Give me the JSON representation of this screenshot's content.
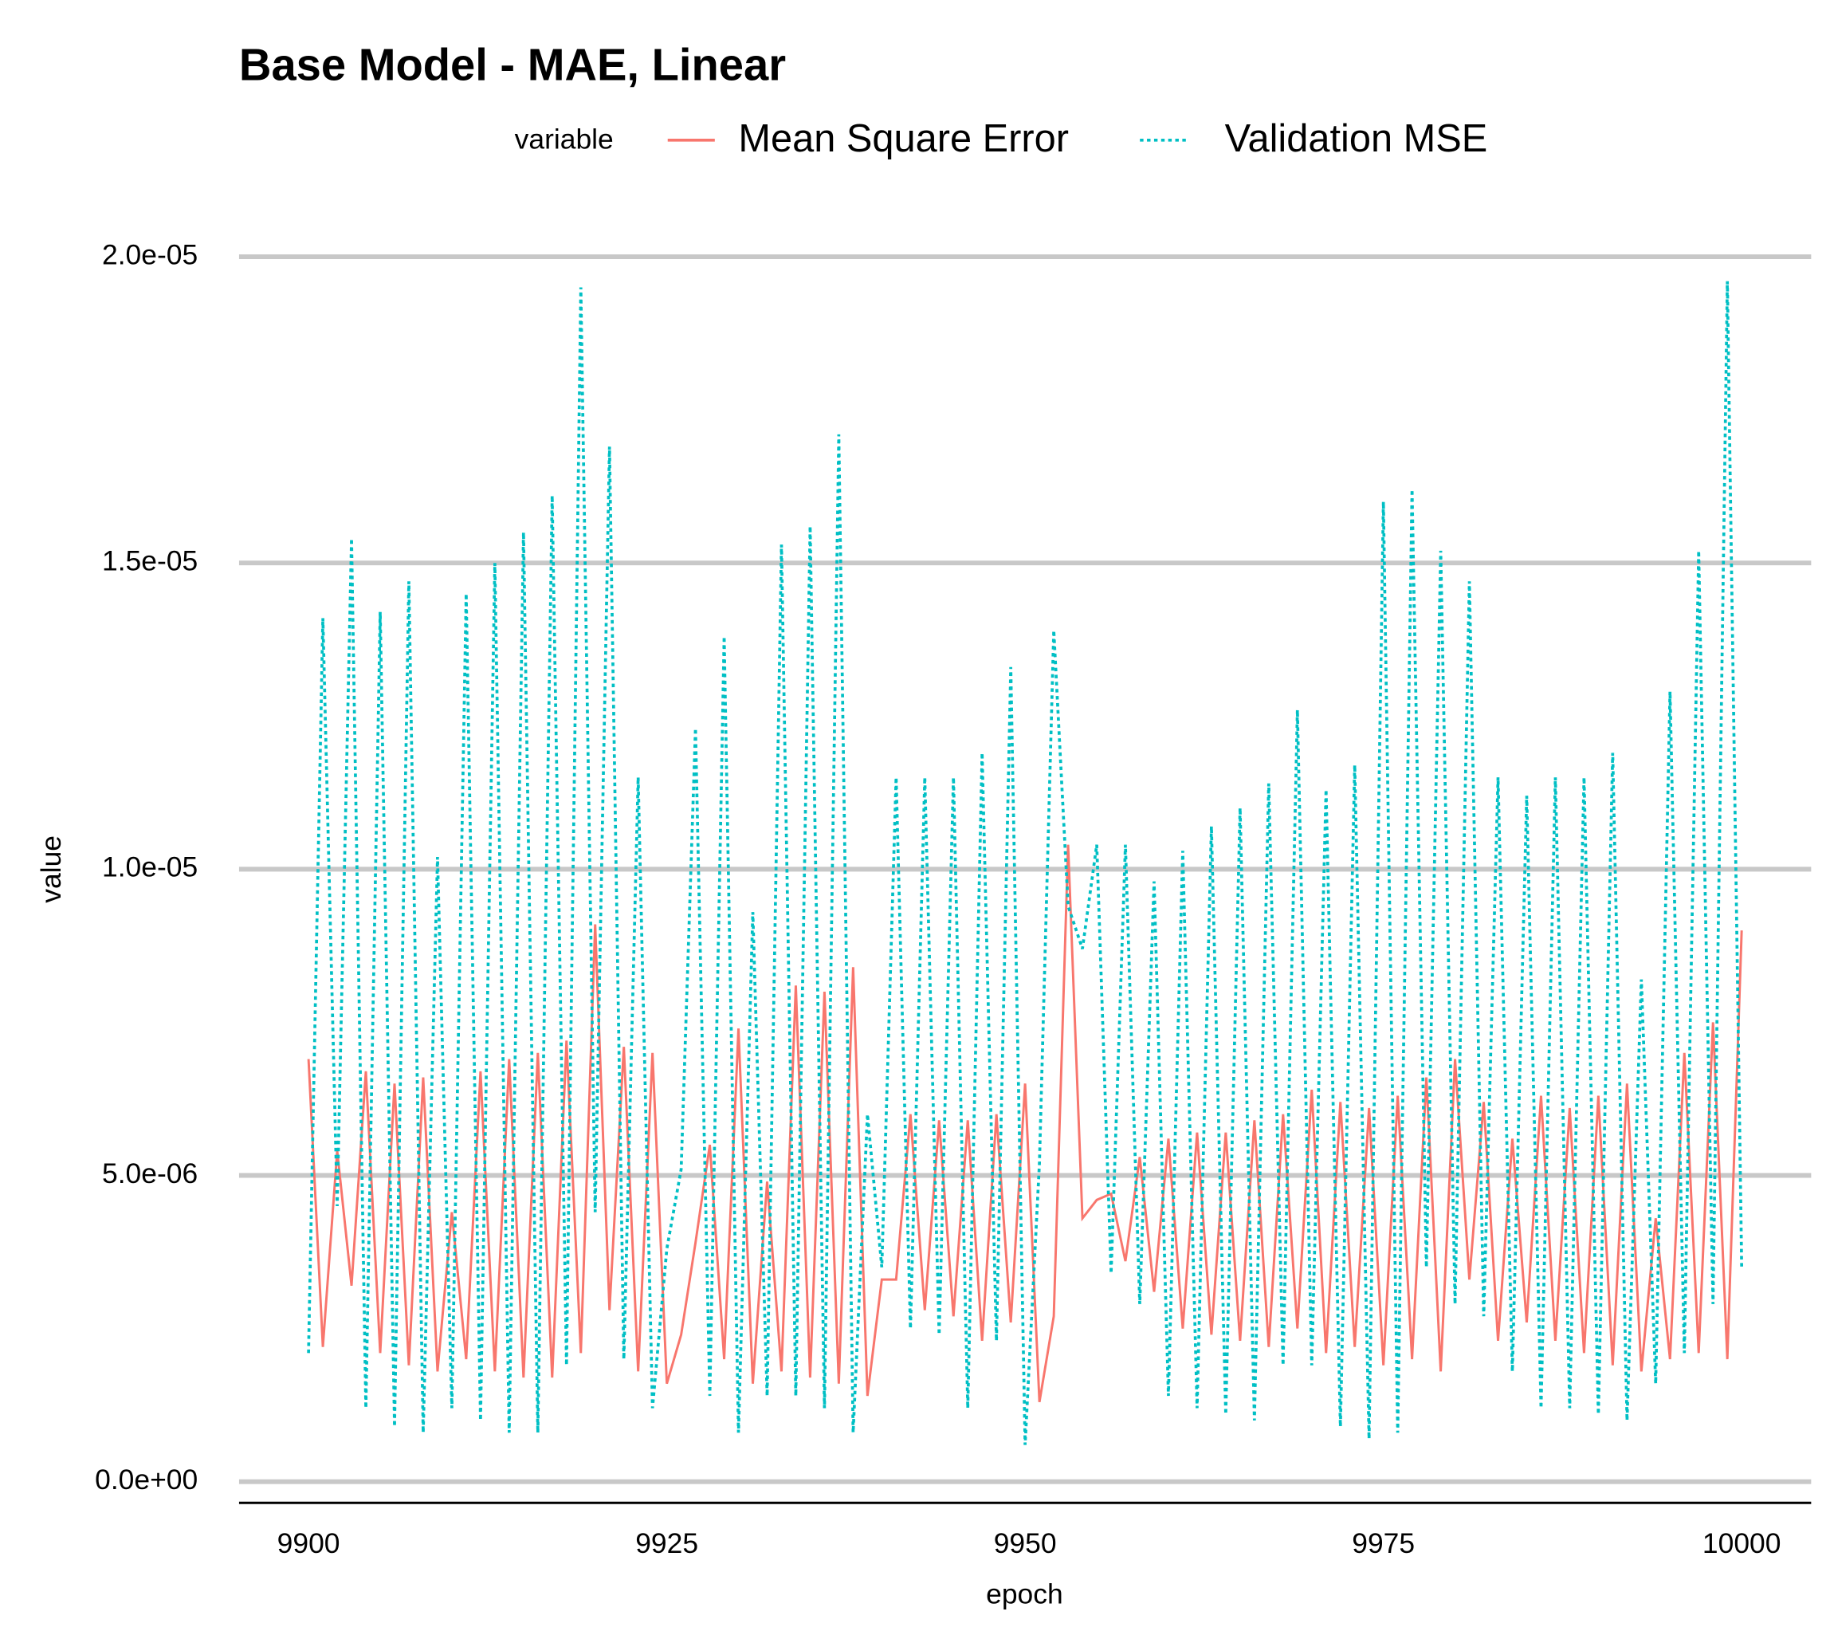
{
  "chart_data": {
    "type": "line",
    "title": "Base Model - MAE, Linear",
    "legend_title": "variable",
    "xlabel": "epoch",
    "ylabel": "value",
    "x": [
      9900,
      9901,
      9902,
      9903,
      9904,
      9905,
      9906,
      9907,
      9908,
      9909,
      9910,
      9911,
      9912,
      9913,
      9914,
      9915,
      9916,
      9917,
      9918,
      9919,
      9920,
      9921,
      9922,
      9923,
      9924,
      9925,
      9926,
      9927,
      9928,
      9929,
      9930,
      9931,
      9932,
      9933,
      9934,
      9935,
      9936,
      9937,
      9938,
      9939,
      9940,
      9941,
      9942,
      9943,
      9944,
      9945,
      9946,
      9947,
      9948,
      9949,
      9950,
      9951,
      9952,
      9953,
      9954,
      9955,
      9956,
      9957,
      9958,
      9959,
      9960,
      9961,
      9962,
      9963,
      9964,
      9965,
      9966,
      9967,
      9968,
      9969,
      9970,
      9971,
      9972,
      9973,
      9974,
      9975,
      9976,
      9977,
      9978,
      9979,
      9980,
      9981,
      9982,
      9983,
      9984,
      9985,
      9986,
      9987,
      9988,
      9989,
      9990,
      9991,
      9992,
      9993,
      9994,
      9995,
      9996,
      9997,
      9998,
      9999,
      10000
    ],
    "series": [
      {
        "name": "Mean Square Error",
        "color": "#F8766D",
        "dash": "solid",
        "values": [
          6.9e-06,
          2.2e-06,
          5.4e-06,
          3.2e-06,
          6.7e-06,
          2.1e-06,
          6.5e-06,
          1.9e-06,
          6.6e-06,
          1.8e-06,
          4.4e-06,
          2e-06,
          6.7e-06,
          1.8e-06,
          6.9e-06,
          1.7e-06,
          7e-06,
          1.7e-06,
          7.2e-06,
          2.1e-06,
          9.1e-06,
          2.8e-06,
          7.1e-06,
          1.8e-06,
          7e-06,
          1.6e-06,
          2.4e-06,
          3.9e-06,
          5.5e-06,
          2e-06,
          7.4e-06,
          1.6e-06,
          4.9e-06,
          1.8e-06,
          8.1e-06,
          1.7e-06,
          8e-06,
          1.6e-06,
          8.4e-06,
          1.4e-06,
          3.3e-06,
          3.3e-06,
          6e-06,
          2.8e-06,
          5.9e-06,
          2.7e-06,
          5.9e-06,
          2.3e-06,
          6e-06,
          2.6e-06,
          6.5e-06,
          1.3e-06,
          2.7e-06,
          1.04e-05,
          4.3e-06,
          4.6e-06,
          4.7e-06,
          3.6e-06,
          5.3e-06,
          3.1e-06,
          5.6e-06,
          2.5e-06,
          5.7e-06,
          2.4e-06,
          5.7e-06,
          2.3e-06,
          5.9e-06,
          2.2e-06,
          6e-06,
          2.5e-06,
          6.4e-06,
          2.1e-06,
          6.2e-06,
          2.2e-06,
          6.1e-06,
          1.9e-06,
          6.3e-06,
          2e-06,
          6.6e-06,
          1.8e-06,
          6.9e-06,
          3.3e-06,
          6.2e-06,
          2.3e-06,
          5.6e-06,
          2.6e-06,
          6.3e-06,
          2.3e-06,
          6.1e-06,
          2.1e-06,
          6.3e-06,
          1.9e-06,
          6.5e-06,
          1.8e-06,
          4.3e-06,
          2e-06,
          7e-06,
          2.1e-06,
          7.5e-06,
          2e-06,
          9e-06
        ]
      },
      {
        "name": "Validation MSE",
        "color": "#00BFC4",
        "dash": "dotted",
        "values": [
          2.1e-06,
          1.41e-05,
          4.5e-06,
          1.54e-05,
          1.2e-06,
          1.42e-05,
          9e-07,
          1.47e-05,
          8e-07,
          1.02e-05,
          1.2e-06,
          1.45e-05,
          1e-06,
          1.5e-05,
          8e-07,
          1.55e-05,
          8e-07,
          1.61e-05,
          1.9e-06,
          1.95e-05,
          4.4e-06,
          1.69e-05,
          2e-06,
          1.15e-05,
          1.2e-06,
          3.8e-06,
          5.1e-06,
          1.23e-05,
          1.4e-06,
          1.38e-05,
          8e-07,
          9.3e-06,
          1.4e-06,
          1.53e-05,
          1.4e-06,
          1.56e-05,
          1.2e-06,
          1.71e-05,
          8e-07,
          6e-06,
          3.5e-06,
          1.15e-05,
          2.5e-06,
          1.15e-05,
          2.4e-06,
          1.15e-05,
          1.2e-06,
          1.19e-05,
          2.3e-06,
          1.33e-05,
          6e-07,
          5.2e-06,
          1.39e-05,
          9.4e-06,
          8.7e-06,
          1.04e-05,
          3.4e-06,
          1.04e-05,
          2.9e-06,
          9.8e-06,
          1.4e-06,
          1.03e-05,
          1.2e-06,
          1.07e-05,
          1.1e-06,
          1.1e-05,
          1e-06,
          1.14e-05,
          1.9e-06,
          1.26e-05,
          1.9e-06,
          1.13e-05,
          9e-07,
          1.17e-05,
          7e-07,
          1.6e-05,
          8e-07,
          1.62e-05,
          3.5e-06,
          1.52e-05,
          2.9e-06,
          1.47e-05,
          2.7e-06,
          1.15e-05,
          1.8e-06,
          1.12e-05,
          1.2e-06,
          1.15e-05,
          1.2e-06,
          1.15e-05,
          1.1e-06,
          1.19e-05,
          1e-06,
          8.2e-06,
          1.6e-06,
          1.29e-05,
          2.1e-06,
          1.52e-05,
          2.9e-06,
          1.96e-05,
          3.5e-06
        ]
      }
    ],
    "xlim": [
      9900,
      10000
    ],
    "xticks": [
      9900,
      9925,
      9950,
      9975,
      10000
    ],
    "ylim": [
      0,
      2e-05
    ],
    "yticks": [
      {
        "value": 0,
        "label": "0.0e+00"
      },
      {
        "value": 5e-06,
        "label": "5.0e-06"
      },
      {
        "value": 1e-05,
        "label": "1.0e-05"
      },
      {
        "value": 1.5e-05,
        "label": "1.5e-05"
      },
      {
        "value": 2e-05,
        "label": "2.0e-05"
      }
    ],
    "grid": true,
    "legend": "top"
  }
}
